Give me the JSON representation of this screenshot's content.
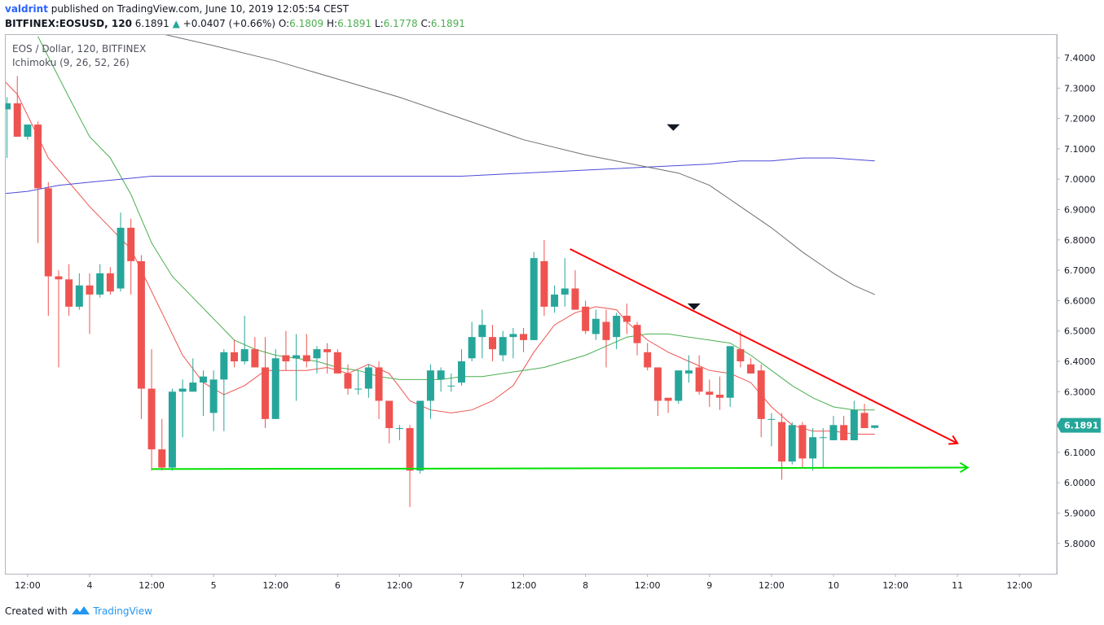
{
  "header": {
    "author": "valdrint",
    "published": "published on TradingView.com, June 10, 2019 12:05:54 CEST",
    "symbol": "BITFINEX:EOSUSD, 120",
    "last": "6.1891",
    "change_arrow": "▲",
    "change": "+0.0407 (+0.66%)",
    "o_label": "O:",
    "o_value": "6.1809",
    "h_label": "H:",
    "h_value": "6.1891",
    "l_label": "L:",
    "l_value": "6.1778",
    "c_label": "C:",
    "c_value": "6.1891"
  },
  "legend": {
    "title": "EOS / Dollar, 120, BITFINEX",
    "indicator": "Ichimoku (9, 26, 52, 26)"
  },
  "footer": {
    "created": "Created with",
    "brand": "TradingView",
    "brand_icon": "tradingview-logo-icon"
  },
  "chart_data": {
    "type": "candlestick",
    "title": "EOS / Dollar, 120, BITFINEX",
    "ylim": [
      5.7,
      7.5
    ],
    "y_ticks": [
      "7.4000",
      "7.3000",
      "7.2000",
      "7.1000",
      "7.0000",
      "6.9000",
      "6.8000",
      "6.7000",
      "6.6000",
      "6.5000",
      "6.4000",
      "6.3000",
      "6.2000",
      "6.1000",
      "6.0000",
      "5.9000",
      "5.8000"
    ],
    "x_ticks": [
      "12:00",
      "4",
      "12:00",
      "5",
      "12:00",
      "6",
      "12:00",
      "7",
      "12:00",
      "8",
      "12:00",
      "9",
      "12:00",
      "10",
      "12:00",
      "11",
      "12:00"
    ],
    "x_tick_hours": [
      -12,
      0,
      12,
      24,
      36,
      48,
      60,
      72,
      84,
      96,
      108,
      120,
      132,
      144,
      156,
      168,
      180
    ],
    "last_price_label": "6.1891",
    "colors": {
      "up": "#26a69a",
      "down": "#ef5350",
      "last_label_bg": "#26a69a"
    },
    "candles": [
      {
        "t": -24,
        "o": 7.45,
        "h": 7.47,
        "l": 7.15,
        "c": 7.16
      },
      {
        "t": -22,
        "o": 7.27,
        "h": 7.42,
        "l": 7.23,
        "c": 7.33
      },
      {
        "t": -20,
        "o": 7.33,
        "h": 7.4,
        "l": 7.3,
        "c": 7.36
      },
      {
        "t": -18,
        "o": 7.36,
        "h": 7.38,
        "l": 7.23,
        "c": 7.23
      },
      {
        "t": -16,
        "o": 7.23,
        "h": 7.27,
        "l": 7.07,
        "c": 7.25
      },
      {
        "t": -14,
        "o": 7.25,
        "h": 7.34,
        "l": 7.14,
        "c": 7.14
      },
      {
        "t": -12,
        "o": 7.14,
        "h": 7.18,
        "l": 7.13,
        "c": 7.18
      },
      {
        "t": -10,
        "o": 7.18,
        "h": 7.19,
        "l": 6.79,
        "c": 6.97
      },
      {
        "t": -8,
        "o": 6.97,
        "h": 6.99,
        "l": 6.55,
        "c": 6.68
      },
      {
        "t": -6,
        "o": 6.68,
        "h": 6.7,
        "l": 6.38,
        "c": 6.67
      },
      {
        "t": -4,
        "o": 6.67,
        "h": 6.72,
        "l": 6.55,
        "c": 6.58
      },
      {
        "t": -2,
        "o": 6.58,
        "h": 6.69,
        "l": 6.57,
        "c": 6.65
      },
      {
        "t": 0,
        "o": 6.65,
        "h": 6.69,
        "l": 6.49,
        "c": 6.62
      },
      {
        "t": 2,
        "o": 6.62,
        "h": 6.72,
        "l": 6.61,
        "c": 6.69
      },
      {
        "t": 4,
        "o": 6.69,
        "h": 6.71,
        "l": 6.62,
        "c": 6.63
      },
      {
        "t": 6,
        "o": 6.64,
        "h": 6.89,
        "l": 6.63,
        "c": 6.84
      },
      {
        "t": 8,
        "o": 6.84,
        "h": 6.87,
        "l": 6.62,
        "c": 6.73
      },
      {
        "t": 10,
        "o": 6.73,
        "h": 6.75,
        "l": 6.21,
        "c": 6.31
      },
      {
        "t": 12,
        "o": 6.31,
        "h": 6.44,
        "l": 6.04,
        "c": 6.11
      },
      {
        "t": 14,
        "o": 6.11,
        "h": 6.21,
        "l": 6.04,
        "c": 6.05
      },
      {
        "t": 16,
        "o": 6.05,
        "h": 6.31,
        "l": 6.04,
        "c": 6.3
      },
      {
        "t": 18,
        "o": 6.3,
        "h": 6.34,
        "l": 6.15,
        "c": 6.31
      },
      {
        "t": 20,
        "o": 6.3,
        "h": 6.41,
        "l": 6.3,
        "c": 6.33
      },
      {
        "t": 22,
        "o": 6.33,
        "h": 6.37,
        "l": 6.22,
        "c": 6.35
      },
      {
        "t": 24,
        "o": 6.23,
        "h": 6.37,
        "l": 6.17,
        "c": 6.34
      },
      {
        "t": 26,
        "o": 6.34,
        "h": 6.44,
        "l": 6.17,
        "c": 6.43
      },
      {
        "t": 28,
        "o": 6.43,
        "h": 6.47,
        "l": 6.38,
        "c": 6.4
      },
      {
        "t": 30,
        "o": 6.4,
        "h": 6.55,
        "l": 6.39,
        "c": 6.44
      },
      {
        "t": 32,
        "o": 6.44,
        "h": 6.48,
        "l": 6.39,
        "c": 6.38
      },
      {
        "t": 34,
        "o": 6.38,
        "h": 6.48,
        "l": 6.18,
        "c": 6.21
      },
      {
        "t": 36,
        "o": 6.21,
        "h": 6.44,
        "l": 6.21,
        "c": 6.41
      },
      {
        "t": 38,
        "o": 6.42,
        "h": 6.5,
        "l": 6.37,
        "c": 6.4
      },
      {
        "t": 40,
        "o": 6.41,
        "h": 6.49,
        "l": 6.27,
        "c": 6.42
      },
      {
        "t": 42,
        "o": 6.42,
        "h": 6.49,
        "l": 6.38,
        "c": 6.4
      },
      {
        "t": 44,
        "o": 6.41,
        "h": 6.45,
        "l": 6.36,
        "c": 6.44
      },
      {
        "t": 46,
        "o": 6.44,
        "h": 6.46,
        "l": 6.36,
        "c": 6.43
      },
      {
        "t": 48,
        "o": 6.43,
        "h": 6.44,
        "l": 6.36,
        "c": 6.36
      },
      {
        "t": 50,
        "o": 6.36,
        "h": 6.39,
        "l": 6.29,
        "c": 6.31
      },
      {
        "t": 52,
        "o": 6.31,
        "h": 6.37,
        "l": 6.29,
        "c": 6.31
      },
      {
        "t": 54,
        "o": 6.31,
        "h": 6.39,
        "l": 6.28,
        "c": 6.38
      },
      {
        "t": 56,
        "o": 6.38,
        "h": 6.4,
        "l": 6.21,
        "c": 6.27
      },
      {
        "t": 58,
        "o": 6.27,
        "h": 6.27,
        "l": 6.13,
        "c": 6.18
      },
      {
        "t": 60,
        "o": 6.18,
        "h": 6.19,
        "l": 6.14,
        "c": 6.18
      },
      {
        "t": 62,
        "o": 6.18,
        "h": 6.19,
        "l": 5.92,
        "c": 6.04
      },
      {
        "t": 64,
        "o": 6.04,
        "h": 6.27,
        "l": 6.03,
        "c": 6.27
      },
      {
        "t": 66,
        "o": 6.27,
        "h": 6.39,
        "l": 6.21,
        "c": 6.37
      },
      {
        "t": 68,
        "o": 6.34,
        "h": 6.38,
        "l": 6.3,
        "c": 6.37
      },
      {
        "t": 70,
        "o": 6.32,
        "h": 6.36,
        "l": 6.3,
        "c": 6.32
      },
      {
        "t": 72,
        "o": 6.33,
        "h": 6.44,
        "l": 6.32,
        "c": 6.4
      },
      {
        "t": 74,
        "o": 6.41,
        "h": 6.53,
        "l": 6.4,
        "c": 6.48
      },
      {
        "t": 76,
        "o": 6.48,
        "h": 6.57,
        "l": 6.41,
        "c": 6.52
      },
      {
        "t": 78,
        "o": 6.48,
        "h": 6.52,
        "l": 6.4,
        "c": 6.44
      },
      {
        "t": 80,
        "o": 6.42,
        "h": 6.5,
        "l": 6.4,
        "c": 6.48
      },
      {
        "t": 82,
        "o": 6.48,
        "h": 6.51,
        "l": 6.41,
        "c": 6.49
      },
      {
        "t": 84,
        "o": 6.49,
        "h": 6.51,
        "l": 6.43,
        "c": 6.47
      },
      {
        "t": 86,
        "o": 6.47,
        "h": 6.76,
        "l": 6.47,
        "c": 6.74
      },
      {
        "t": 88,
        "o": 6.73,
        "h": 6.8,
        "l": 6.55,
        "c": 6.58
      },
      {
        "t": 90,
        "o": 6.58,
        "h": 6.65,
        "l": 6.56,
        "c": 6.62
      },
      {
        "t": 92,
        "o": 6.62,
        "h": 6.74,
        "l": 6.58,
        "c": 6.64
      },
      {
        "t": 94,
        "o": 6.64,
        "h": 6.7,
        "l": 6.57,
        "c": 6.57
      },
      {
        "t": 96,
        "o": 6.58,
        "h": 6.6,
        "l": 6.49,
        "c": 6.5
      },
      {
        "t": 98,
        "o": 6.49,
        "h": 6.57,
        "l": 6.47,
        "c": 6.54
      },
      {
        "t": 100,
        "o": 6.53,
        "h": 6.57,
        "l": 6.38,
        "c": 6.47
      },
      {
        "t": 102,
        "o": 6.48,
        "h": 6.56,
        "l": 6.44,
        "c": 6.55
      },
      {
        "t": 104,
        "o": 6.55,
        "h": 6.59,
        "l": 6.49,
        "c": 6.53
      },
      {
        "t": 106,
        "o": 6.52,
        "h": 6.53,
        "l": 6.42,
        "c": 6.46
      },
      {
        "t": 108,
        "o": 6.43,
        "h": 6.46,
        "l": 6.37,
        "c": 6.38
      },
      {
        "t": 110,
        "o": 6.38,
        "h": 6.38,
        "l": 6.22,
        "c": 6.27
      },
      {
        "t": 112,
        "o": 6.28,
        "h": 6.28,
        "l": 6.23,
        "c": 6.27
      },
      {
        "t": 114,
        "o": 6.27,
        "h": 6.36,
        "l": 6.26,
        "c": 6.37
      },
      {
        "t": 116,
        "o": 6.36,
        "h": 6.42,
        "l": 6.33,
        "c": 6.37
      },
      {
        "t": 118,
        "o": 6.38,
        "h": 6.42,
        "l": 6.29,
        "c": 6.3
      },
      {
        "t": 120,
        "o": 6.3,
        "h": 6.34,
        "l": 6.25,
        "c": 6.29
      },
      {
        "t": 122,
        "o": 6.29,
        "h": 6.35,
        "l": 6.24,
        "c": 6.28
      },
      {
        "t": 124,
        "o": 6.28,
        "h": 6.45,
        "l": 6.25,
        "c": 6.45
      },
      {
        "t": 126,
        "o": 6.44,
        "h": 6.5,
        "l": 6.38,
        "c": 6.4
      },
      {
        "t": 128,
        "o": 6.39,
        "h": 6.41,
        "l": 6.36,
        "c": 6.36
      },
      {
        "t": 130,
        "o": 6.37,
        "h": 6.39,
        "l": 6.15,
        "c": 6.21
      },
      {
        "t": 132,
        "o": 6.21,
        "h": 6.23,
        "l": 6.12,
        "c": 6.21
      },
      {
        "t": 134,
        "o": 6.2,
        "h": 6.23,
        "l": 6.01,
        "c": 6.07
      },
      {
        "t": 136,
        "o": 6.07,
        "h": 6.2,
        "l": 6.06,
        "c": 6.19
      },
      {
        "t": 138,
        "o": 6.19,
        "h": 6.2,
        "l": 6.05,
        "c": 6.08
      },
      {
        "t": 140,
        "o": 6.08,
        "h": 6.18,
        "l": 6.04,
        "c": 6.15
      },
      {
        "t": 142,
        "o": 6.15,
        "h": 6.18,
        "l": 6.05,
        "c": 6.15
      },
      {
        "t": 144,
        "o": 6.14,
        "h": 6.22,
        "l": 6.14,
        "c": 6.19
      },
      {
        "t": 146,
        "o": 6.19,
        "h": 6.22,
        "l": 6.14,
        "c": 6.14
      },
      {
        "t": 148,
        "o": 6.14,
        "h": 6.27,
        "l": 6.14,
        "c": 6.24
      },
      {
        "t": 150,
        "o": 6.23,
        "h": 6.26,
        "l": 6.18,
        "c": 6.18
      },
      {
        "t": 152,
        "o": 6.1809,
        "h": 6.1891,
        "l": 6.1778,
        "c": 6.1891
      }
    ],
    "lines": [
      {
        "color": "#ef5350",
        "points": [
          [
            -22,
            7.42
          ],
          [
            -14,
            7.28
          ],
          [
            -8,
            7.07
          ],
          [
            0,
            6.91
          ],
          [
            8,
            6.77
          ],
          [
            14,
            6.56
          ],
          [
            18,
            6.42
          ],
          [
            22,
            6.33
          ],
          [
            26,
            6.29
          ],
          [
            30,
            6.32
          ],
          [
            34,
            6.37
          ],
          [
            38,
            6.37
          ],
          [
            42,
            6.37
          ],
          [
            46,
            6.38
          ],
          [
            50,
            6.36
          ],
          [
            54,
            6.39
          ],
          [
            58,
            6.36
          ],
          [
            62,
            6.27
          ],
          [
            66,
            6.24
          ],
          [
            70,
            6.23
          ],
          [
            74,
            6.24
          ],
          [
            78,
            6.27
          ],
          [
            82,
            6.32
          ],
          [
            86,
            6.43
          ],
          [
            90,
            6.52
          ],
          [
            94,
            6.56
          ],
          [
            98,
            6.58
          ],
          [
            102,
            6.57
          ],
          [
            104,
            6.53
          ],
          [
            108,
            6.47
          ],
          [
            112,
            6.43
          ],
          [
            116,
            6.4
          ],
          [
            120,
            6.37
          ],
          [
            124,
            6.36
          ],
          [
            128,
            6.33
          ],
          [
            132,
            6.25
          ],
          [
            136,
            6.19
          ],
          [
            140,
            6.17
          ],
          [
            144,
            6.17
          ],
          [
            148,
            6.16
          ],
          [
            152,
            6.16
          ]
        ]
      },
      {
        "color": "#4caf50",
        "points": [
          [
            -10,
            7.47
          ],
          [
            -4,
            7.27
          ],
          [
            0,
            7.14
          ],
          [
            4,
            7.07
          ],
          [
            8,
            6.95
          ],
          [
            12,
            6.79
          ],
          [
            16,
            6.68
          ],
          [
            20,
            6.61
          ],
          [
            24,
            6.54
          ],
          [
            28,
            6.47
          ],
          [
            32,
            6.44
          ],
          [
            36,
            6.42
          ],
          [
            40,
            6.41
          ],
          [
            44,
            6.4
          ],
          [
            48,
            6.38
          ],
          [
            52,
            6.37
          ],
          [
            56,
            6.35
          ],
          [
            60,
            6.34
          ],
          [
            64,
            6.34
          ],
          [
            68,
            6.34
          ],
          [
            72,
            6.35
          ],
          [
            76,
            6.35
          ],
          [
            80,
            6.36
          ],
          [
            84,
            6.37
          ],
          [
            88,
            6.38
          ],
          [
            92,
            6.4
          ],
          [
            96,
            6.42
          ],
          [
            100,
            6.45
          ],
          [
            104,
            6.48
          ],
          [
            108,
            6.49
          ],
          [
            112,
            6.49
          ],
          [
            116,
            6.48
          ],
          [
            120,
            6.47
          ],
          [
            124,
            6.46
          ],
          [
            128,
            6.42
          ],
          [
            132,
            6.37
          ],
          [
            136,
            6.32
          ],
          [
            140,
            6.28
          ],
          [
            144,
            6.25
          ],
          [
            148,
            6.24
          ],
          [
            152,
            6.24
          ]
        ]
      },
      {
        "color": "#4a4ad8",
        "points": [
          [
            -24,
            6.93
          ],
          [
            -18,
            6.95
          ],
          [
            -12,
            6.96
          ],
          [
            -6,
            6.98
          ],
          [
            0,
            6.99
          ],
          [
            6,
            7.0
          ],
          [
            12,
            7.01
          ],
          [
            24,
            7.01
          ],
          [
            36,
            7.01
          ],
          [
            48,
            7.01
          ],
          [
            60,
            7.01
          ],
          [
            72,
            7.01
          ],
          [
            84,
            7.02
          ],
          [
            96,
            7.03
          ],
          [
            108,
            7.04
          ],
          [
            120,
            7.05
          ],
          [
            126,
            7.06
          ],
          [
            132,
            7.06
          ],
          [
            138,
            7.07
          ],
          [
            144,
            7.07
          ],
          [
            152,
            7.06
          ]
        ]
      },
      {
        "color": "#707070",
        "points": [
          [
            6,
            7.51
          ],
          [
            24,
            7.44
          ],
          [
            36,
            7.39
          ],
          [
            48,
            7.33
          ],
          [
            60,
            7.27
          ],
          [
            72,
            7.2
          ],
          [
            84,
            7.13
          ],
          [
            96,
            7.08
          ],
          [
            108,
            7.04
          ],
          [
            114,
            7.02
          ],
          [
            120,
            6.98
          ],
          [
            126,
            6.91
          ],
          [
            132,
            6.84
          ],
          [
            138,
            6.76
          ],
          [
            144,
            6.69
          ],
          [
            148,
            6.65
          ],
          [
            152,
            6.62
          ]
        ]
      }
    ],
    "drawings": [
      {
        "kind": "trendline",
        "color": "#ff0000",
        "from": [
          93,
          6.77
        ],
        "to": [
          168,
          6.13
        ],
        "arrow": true
      },
      {
        "kind": "support",
        "color": "#00e000",
        "from": [
          12,
          6.045
        ],
        "to": [
          170,
          6.05
        ],
        "arrow": true
      }
    ],
    "markers": [
      {
        "t": 113,
        "price": 7.17
      },
      {
        "t": 117,
        "price": 6.58
      }
    ]
  }
}
